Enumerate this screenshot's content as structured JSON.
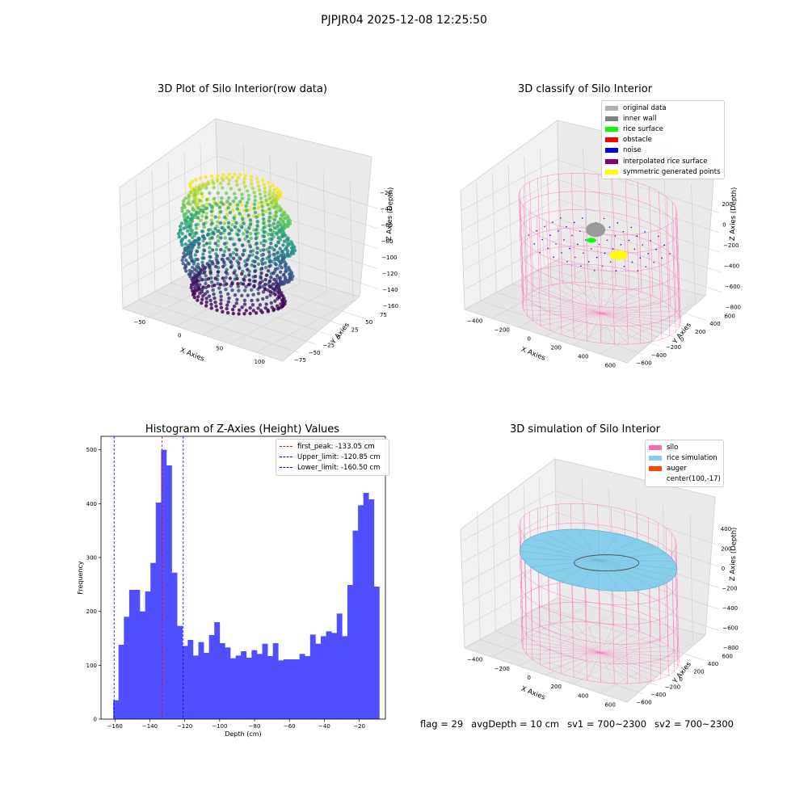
{
  "suptitle": "PJPJR04 2025-12-08 12:25:50",
  "footer": {
    "flag": "flag = 29",
    "avg_depth": "avgDepth = 10 cm",
    "sv1": "sv1 = 700~2300",
    "sv2": "sv2 = 700~2300"
  },
  "colors": {
    "hist_bar": "#4b4bff",
    "peak_line": "#ff0000",
    "limit_line": "#0000ff",
    "silo": "#ff69b4",
    "rice_simulation": "#87ceeb",
    "auger": "#ff4500",
    "pane": "#f2f2f2"
  },
  "chart_data": [
    {
      "type": "scatter",
      "projection": "3d",
      "title": "3D Plot of Silo Interior(row data)",
      "xlabel": "X Axies",
      "ylabel": "Y Axies",
      "zlabel": "Z Axies (Depth)",
      "xticks": [
        "−50",
        "0",
        "50",
        "100"
      ],
      "yticks": [
        "−75",
        "−50",
        "−25",
        "0",
        "25",
        "50",
        "75"
      ],
      "zticks": [
        "−20",
        "−40",
        "−60",
        "−80",
        "−100",
        "−120",
        "−140",
        "−160"
      ],
      "xlim": [
        -75,
        125
      ],
      "ylim": [
        -85,
        85
      ],
      "zlim": [
        -165,
        -15
      ],
      "colormap": "viridis (by depth)",
      "grid": true
    },
    {
      "type": "scatter",
      "projection": "3d",
      "title": "3D classify of Silo Interior",
      "xlabel": "X Axies",
      "ylabel": "Y Axies",
      "zlabel": "Z Axies (Depth)",
      "xticks": [
        "−400",
        "−200",
        "0",
        "200",
        "400",
        "600"
      ],
      "yticks": [
        "−600",
        "−400",
        "−200",
        "0",
        "200",
        "400",
        "600"
      ],
      "zticks": [
        "200",
        "0",
        "−200",
        "−400",
        "−600",
        "−800"
      ],
      "xlim": [
        -500,
        700
      ],
      "ylim": [
        -650,
        650
      ],
      "zlim": [
        -850,
        300
      ],
      "legend_position": "upper right",
      "legend": [
        {
          "label": "original data",
          "color": "#b0b0b0"
        },
        {
          "label": "inner wall",
          "color": "#808080"
        },
        {
          "label": "rice surface",
          "color": "#00ff00"
        },
        {
          "label": "obstacle",
          "color": "#ff0000"
        },
        {
          "label": "noise",
          "color": "#0000ff"
        },
        {
          "label": "interpolated rice surface",
          "color": "#800080"
        },
        {
          "label": "symmetric generated points",
          "color": "#ffff00"
        }
      ],
      "grid": true
    },
    {
      "type": "bar",
      "title": "Histogram of Z-Axies (Height) Values",
      "xlabel": "Depth (cm)",
      "ylabel": "Frequency",
      "xlim": [
        -168,
        -5
      ],
      "ylim": [
        0,
        525
      ],
      "xticks": [
        "−160",
        "−140",
        "−120",
        "−100",
        "−80",
        "−60",
        "−40",
        "−20"
      ],
      "yticks": [
        "0",
        "100",
        "200",
        "300",
        "400",
        "500"
      ],
      "bin_start": -161,
      "bin_width": 3.05,
      "values": [
        35,
        138,
        190,
        240,
        240,
        200,
        237,
        290,
        402,
        500,
        471,
        272,
        173,
        136,
        147,
        118,
        143,
        123,
        156,
        180,
        141,
        133,
        113,
        118,
        126,
        114,
        128,
        121,
        140,
        117,
        141,
        109,
        111,
        111,
        111,
        121,
        117,
        157,
        140,
        154,
        163,
        160,
        196,
        154,
        249,
        350,
        397,
        420,
        408,
        246
      ],
      "lines": [
        {
          "label": "first_peak: -133.05 cm",
          "x": -133.05,
          "color": "#ff0000",
          "style": "dashed"
        },
        {
          "label": "Upper_limit: -120.85 cm",
          "x": -120.85,
          "color": "#0000ff",
          "style": "dashed"
        },
        {
          "label": "Lower_limit: -160.50 cm",
          "x": -160.5,
          "color": "#0000ff",
          "style": "dashed"
        }
      ],
      "legend_position": "upper right"
    },
    {
      "type": "surface",
      "projection": "3d",
      "title": "3D simulation of Silo Interior",
      "xlabel": "X Axies",
      "ylabel": "Y Axies",
      "zlabel": "Z Axies (Depth)",
      "xticks": [
        "−400",
        "−200",
        "0",
        "200",
        "400",
        "600"
      ],
      "yticks": [
        "−600",
        "−400",
        "−200",
        "0",
        "200",
        "400",
        "600"
      ],
      "zticks": [
        "400",
        "200",
        "0",
        "−200",
        "−400",
        "−600",
        "−800"
      ],
      "xlim": [
        -500,
        700
      ],
      "ylim": [
        -650,
        650
      ],
      "zlim": [
        -850,
        450
      ],
      "legend_position": "upper right",
      "legend": [
        {
          "label": "silo",
          "color": "#ff69b4"
        },
        {
          "label": "rice simulation",
          "color": "#87ceeb"
        },
        {
          "label": "auger",
          "color": "#ff4500"
        },
        {
          "label": "center(100,-17)",
          "color": ""
        }
      ],
      "grid": true
    }
  ]
}
